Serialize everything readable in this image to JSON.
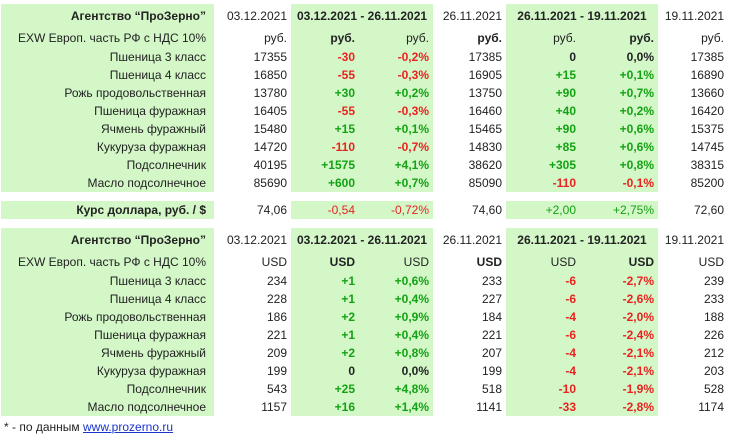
{
  "blocks": [
    {
      "header": [
        "Агентство “ПроЗерно”",
        "03.12.2021",
        "03.12.2021 - 26.11.2021",
        "26.11.2021",
        "26.11.2021 - 19.11.2021",
        "19.11.2021"
      ],
      "units": [
        "EXW Европ. часть РФ с НДС 10%",
        "руб.",
        "руб.",
        "руб.",
        "руб.",
        "руб.",
        "руб.",
        "руб."
      ],
      "rows": [
        [
          "Пшеница 3 класс",
          "17355",
          "-30",
          "-0,2%",
          "17385",
          "0",
          "0,0%",
          "17385"
        ],
        [
          "Пшеница 4 класс",
          "16850",
          "-55",
          "-0,3%",
          "16905",
          "+15",
          "+0,1%",
          "16890"
        ],
        [
          "Рожь продовольственная",
          "13780",
          "+30",
          "+0,2%",
          "13750",
          "+90",
          "+0,7%",
          "13660"
        ],
        [
          "Пшеница фуражная",
          "16405",
          "-55",
          "-0,3%",
          "16460",
          "+40",
          "+0,2%",
          "16420"
        ],
        [
          "Ячмень фуражный",
          "15480",
          "+15",
          "+0,1%",
          "15465",
          "+90",
          "+0,6%",
          "15375"
        ],
        [
          "Кукуруза фуражная",
          "14720",
          "-110",
          "-0,7%",
          "14830",
          "+85",
          "+0,6%",
          "14745"
        ],
        [
          "Подсолнечник",
          "40195",
          "+1575",
          "+4,1%",
          "38620",
          "+305",
          "+0,8%",
          "38315"
        ],
        [
          "Масло подсолнечное",
          "85690",
          "+600",
          "+0,7%",
          "85090",
          "-110",
          "-0,1%",
          "85200"
        ]
      ]
    },
    {
      "header": [
        "Агентство “ПроЗерно”",
        "03.12.2021",
        "03.12.2021 - 26.11.2021",
        "26.11.2021",
        "26.11.2021 - 19.11.2021",
        "19.11.2021"
      ],
      "units": [
        "EXW Европ. часть РФ с НДС 10%",
        "USD",
        "USD",
        "USD",
        "USD",
        "USD",
        "USD",
        "USD"
      ],
      "rows": [
        [
          "Пшеница 3 класс",
          "234",
          "+1",
          "+0,6%",
          "233",
          "-6",
          "-2,7%",
          "239"
        ],
        [
          "Пшеница 4 класс",
          "228",
          "+1",
          "+0,4%",
          "227",
          "-6",
          "-2,6%",
          "233"
        ],
        [
          "Рожь продовольственная",
          "186",
          "+2",
          "+0,9%",
          "184",
          "-4",
          "-2,0%",
          "188"
        ],
        [
          "Пшеница фуражная",
          "221",
          "+1",
          "+0,4%",
          "221",
          "-6",
          "-2,4%",
          "226"
        ],
        [
          "Ячмень фуражный",
          "209",
          "+2",
          "+0,8%",
          "207",
          "-4",
          "-2,1%",
          "212"
        ],
        [
          "Кукуруза фуражная",
          "199",
          "0",
          "0,0%",
          "199",
          "-4",
          "-2,1%",
          "203"
        ],
        [
          "Подсолнечник",
          "543",
          "+25",
          "+4,8%",
          "518",
          "-10",
          "-1,9%",
          "528"
        ],
        [
          "Масло подсолнечное",
          "1157",
          "+16",
          "+1,4%",
          "1141",
          "-33",
          "-2,8%",
          "1174"
        ]
      ]
    }
  ],
  "dollar": [
    "Курс доллара, руб. / $",
    "74,06",
    "-0,54",
    "-0,72%",
    "74,60",
    "+2,00",
    "+2,75%",
    "72,60"
  ],
  "footnote": {
    "text": "* - по данным",
    "link": "www.prozerno.ru"
  }
}
